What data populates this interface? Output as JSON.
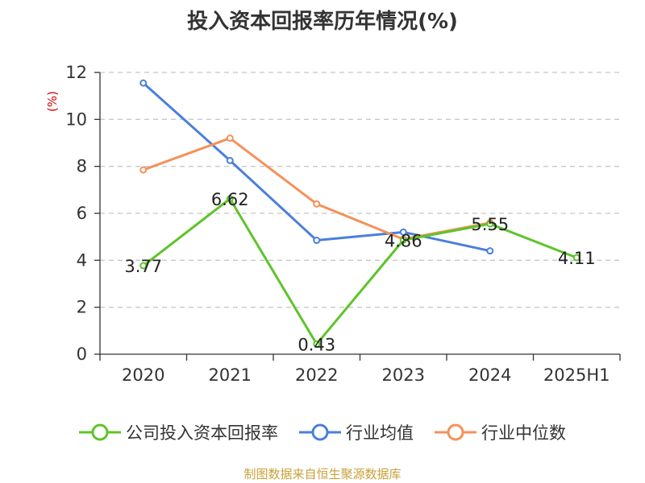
{
  "chart_data": {
    "type": "line",
    "title": "投入资本回报率历年情况(%)",
    "ylabel": "(%)",
    "xlabel": "",
    "categories": [
      "2020",
      "2021",
      "2022",
      "2023",
      "2024",
      "2025H1"
    ],
    "ylim": [
      0,
      12
    ],
    "yticks": [
      0,
      2,
      4,
      6,
      8,
      10,
      12
    ],
    "grid": true,
    "legend_position": "bottom",
    "series": [
      {
        "name": "公司投入资本回报率",
        "color": "#5ec42a",
        "values": [
          3.77,
          6.62,
          0.43,
          4.86,
          5.55,
          4.11
        ],
        "labels": [
          "3.77",
          "6.62",
          "0.43",
          "4.86",
          "5.55",
          "4.11"
        ]
      },
      {
        "name": "行业均值",
        "color": "#4a7fdc",
        "values": [
          11.55,
          8.25,
          4.85,
          5.2,
          4.4,
          null
        ]
      },
      {
        "name": "行业中位数",
        "color": "#f5915a",
        "values": [
          7.85,
          9.2,
          6.4,
          4.9,
          5.6,
          null
        ]
      }
    ]
  },
  "source": "制图数据来自恒生聚源数据库"
}
